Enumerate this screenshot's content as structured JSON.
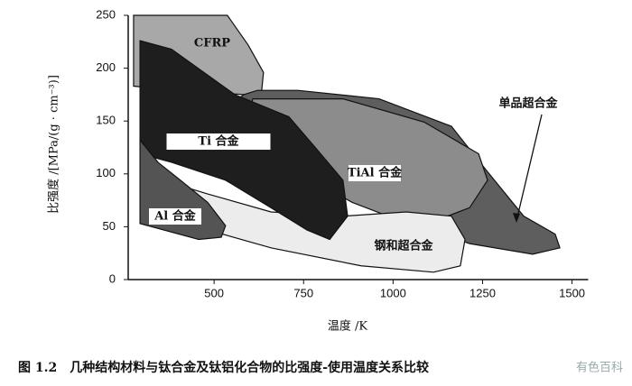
{
  "chart_data": {
    "type": "region",
    "xlabel": "温度 /K",
    "ylabel": "比强度 /[MPa/(g · cm⁻³)]",
    "caption": "图 1.2　几种结构材料与钛合金及钛铝化合物的比强度-使用温度关系比较",
    "watermark": "有色百科",
    "annotation": "单品超合金",
    "xlim": [
      260,
      1520
    ],
    "xticks": [
      500,
      750,
      1000,
      1250,
      1500
    ],
    "ylim": [
      0,
      250
    ],
    "yticks": [
      0,
      50,
      100,
      150,
      200,
      250
    ],
    "series": [
      {
        "name": "CFRP",
        "color": "#a8a8a8",
        "x": [
          275,
          537,
          595,
          638,
          633,
          583,
          406,
          275
        ],
        "values": [
          250,
          250,
          222,
          196,
          179,
          175,
          179,
          183
        ]
      },
      {
        "name": "",
        "color": "#5e5e5e",
        "x": [
          621,
          734,
          961,
          1163,
          1264,
          1365,
          1453,
          1466,
          1390,
          1214,
          1037,
          860,
          659,
          532,
          583
        ],
        "values": [
          179,
          179,
          171,
          145,
          102,
          60,
          43,
          30,
          24,
          34,
          55,
          81,
          119,
          162,
          175
        ]
      },
      {
        "name": "TiAl 合金",
        "color": "#8c8c8c",
        "x": [
          608,
          860,
          1087,
          1239,
          1264,
          1214,
          1113,
          986,
          886,
          734,
          583
        ],
        "values": [
          171,
          171,
          149,
          119,
          94,
          68,
          55,
          60,
          73,
          102,
          136
        ]
      },
      {
        "name": "钢和超合金",
        "color": "#ececec",
        "x": [
          356,
          482,
          659,
          860,
          1037,
          1163,
          1201,
          1188,
          1113,
          911,
          659,
          482,
          343
        ],
        "values": [
          94,
          81,
          64,
          60,
          64,
          60,
          38,
          13,
          7,
          13,
          30,
          47,
          64
        ]
      },
      {
        "name": "Ti 合金",
        "color": "#1e1e1e",
        "x": [
          293,
          381,
          558,
          709,
          785,
          860,
          873,
          823,
          759,
          659,
          532,
          381,
          293
        ],
        "values": [
          226,
          218,
          175,
          154,
          124,
          94,
          60,
          38,
          47,
          68,
          94,
          111,
          119
        ]
      },
      {
        "name": "Al 合金",
        "color": "#545454",
        "x": [
          293,
          343,
          406,
          482,
          532,
          520,
          457,
          293
        ],
        "values": [
          132,
          111,
          94,
          73,
          51,
          40,
          38,
          53
        ]
      }
    ]
  }
}
